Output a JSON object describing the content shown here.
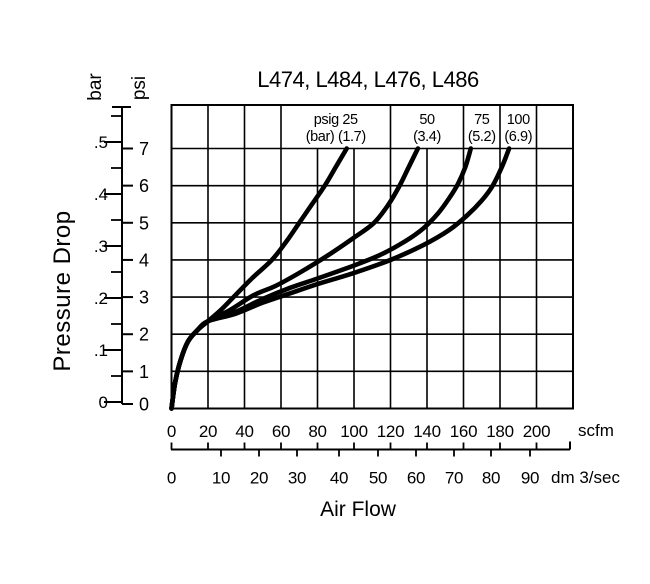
{
  "title": "L474, L484, L476, L486",
  "colors": {
    "ink": "#000000",
    "background": "#ffffff"
  },
  "labels": {
    "y_axis_caption": "Pressure Drop",
    "y_left_unit": "bar",
    "y_right_unit": "psi",
    "x_axis_caption": "Air Flow",
    "x_top_unit": "scfm",
    "x_bottom_unit": "dm 3/sec"
  },
  "chart_data": {
    "type": "line",
    "title": "L474, L484, L476, L486",
    "xlabel": "Air Flow",
    "ylabel": "Pressure Drop",
    "x_axis": {
      "primary_unit": "scfm",
      "primary_ticks": [
        0,
        20,
        40,
        60,
        80,
        100,
        120,
        140,
        160,
        180,
        200
      ],
      "secondary_unit": "dm 3/sec",
      "secondary_ticks": [
        0,
        10,
        20,
        30,
        40,
        50,
        60,
        70,
        80,
        90
      ],
      "range_scfm": [
        0,
        220
      ]
    },
    "y_axis": {
      "left_unit": "bar",
      "left_ticks": [
        "0",
        ".1",
        ".2",
        ".3",
        ".4",
        ".5"
      ],
      "right_unit": "psi",
      "right_ticks": [
        "0",
        "1",
        "2",
        "3",
        "4",
        "5",
        "6",
        "7"
      ],
      "range_psi": [
        0,
        7
      ]
    },
    "grid": {
      "x_step_scfm": 20,
      "y_step_psi": 1,
      "grid_on": true
    },
    "series": [
      {
        "name": "psig 25 (bar 1.7)",
        "header_lines": [
          "psig 25",
          "(bar) (1.7)"
        ],
        "header_span_scfm": [
          60,
          120
        ],
        "points_scfm_psi": [
          [
            0,
            0
          ],
          [
            2,
            0.7
          ],
          [
            5,
            1.3
          ],
          [
            9,
            1.8
          ],
          [
            14,
            2.1
          ],
          [
            20,
            2.35
          ],
          [
            27,
            2.65
          ],
          [
            34,
            3
          ],
          [
            44,
            3.5
          ],
          [
            55,
            4
          ],
          [
            63,
            4.5
          ],
          [
            70,
            5
          ],
          [
            77,
            5.5
          ],
          [
            84,
            6
          ],
          [
            90,
            6.5
          ],
          [
            96,
            7
          ]
        ]
      },
      {
        "name": "psig 50 (bar 3.4)",
        "header_lines": [
          "50",
          "(3.4)"
        ],
        "header_span_scfm": [
          120,
          160
        ],
        "points_scfm_psi": [
          [
            0,
            0
          ],
          [
            2,
            0.7
          ],
          [
            5,
            1.3
          ],
          [
            9,
            1.8
          ],
          [
            14,
            2.1
          ],
          [
            20,
            2.35
          ],
          [
            32,
            2.65
          ],
          [
            45,
            3.05
          ],
          [
            57,
            3.3
          ],
          [
            70,
            3.65
          ],
          [
            85,
            4.1
          ],
          [
            100,
            4.6
          ],
          [
            111,
            5
          ],
          [
            119,
            5.5
          ],
          [
            125,
            6
          ],
          [
            130,
            6.5
          ],
          [
            135,
            7
          ]
        ]
      },
      {
        "name": "psig 75 (bar 5.2)",
        "header_lines": [
          "75",
          "(5.2)"
        ],
        "header_span_scfm": [
          160,
          180
        ],
        "points_scfm_psi": [
          [
            0,
            0
          ],
          [
            2,
            0.7
          ],
          [
            5,
            1.3
          ],
          [
            9,
            1.8
          ],
          [
            14,
            2.1
          ],
          [
            20,
            2.35
          ],
          [
            35,
            2.6
          ],
          [
            50,
            2.95
          ],
          [
            65,
            3.25
          ],
          [
            80,
            3.5
          ],
          [
            100,
            3.85
          ],
          [
            115,
            4.15
          ],
          [
            128,
            4.5
          ],
          [
            138,
            4.85
          ],
          [
            146,
            5.25
          ],
          [
            152,
            5.65
          ],
          [
            157,
            6.05
          ],
          [
            161,
            6.5
          ],
          [
            164,
            7
          ]
        ]
      },
      {
        "name": "psig 100 (bar 6.9)",
        "header_lines": [
          "100",
          "(6.9)"
        ],
        "header_span_scfm": [
          180,
          200
        ],
        "points_scfm_psi": [
          [
            0,
            0
          ],
          [
            2,
            0.7
          ],
          [
            5,
            1.3
          ],
          [
            9,
            1.8
          ],
          [
            14,
            2.1
          ],
          [
            20,
            2.35
          ],
          [
            35,
            2.55
          ],
          [
            50,
            2.85
          ],
          [
            65,
            3.1
          ],
          [
            80,
            3.35
          ],
          [
            100,
            3.65
          ],
          [
            120,
            4
          ],
          [
            138,
            4.4
          ],
          [
            152,
            4.8
          ],
          [
            162,
            5.2
          ],
          [
            170,
            5.6
          ],
          [
            176,
            6
          ],
          [
            181,
            6.5
          ],
          [
            185,
            7
          ]
        ]
      }
    ]
  }
}
